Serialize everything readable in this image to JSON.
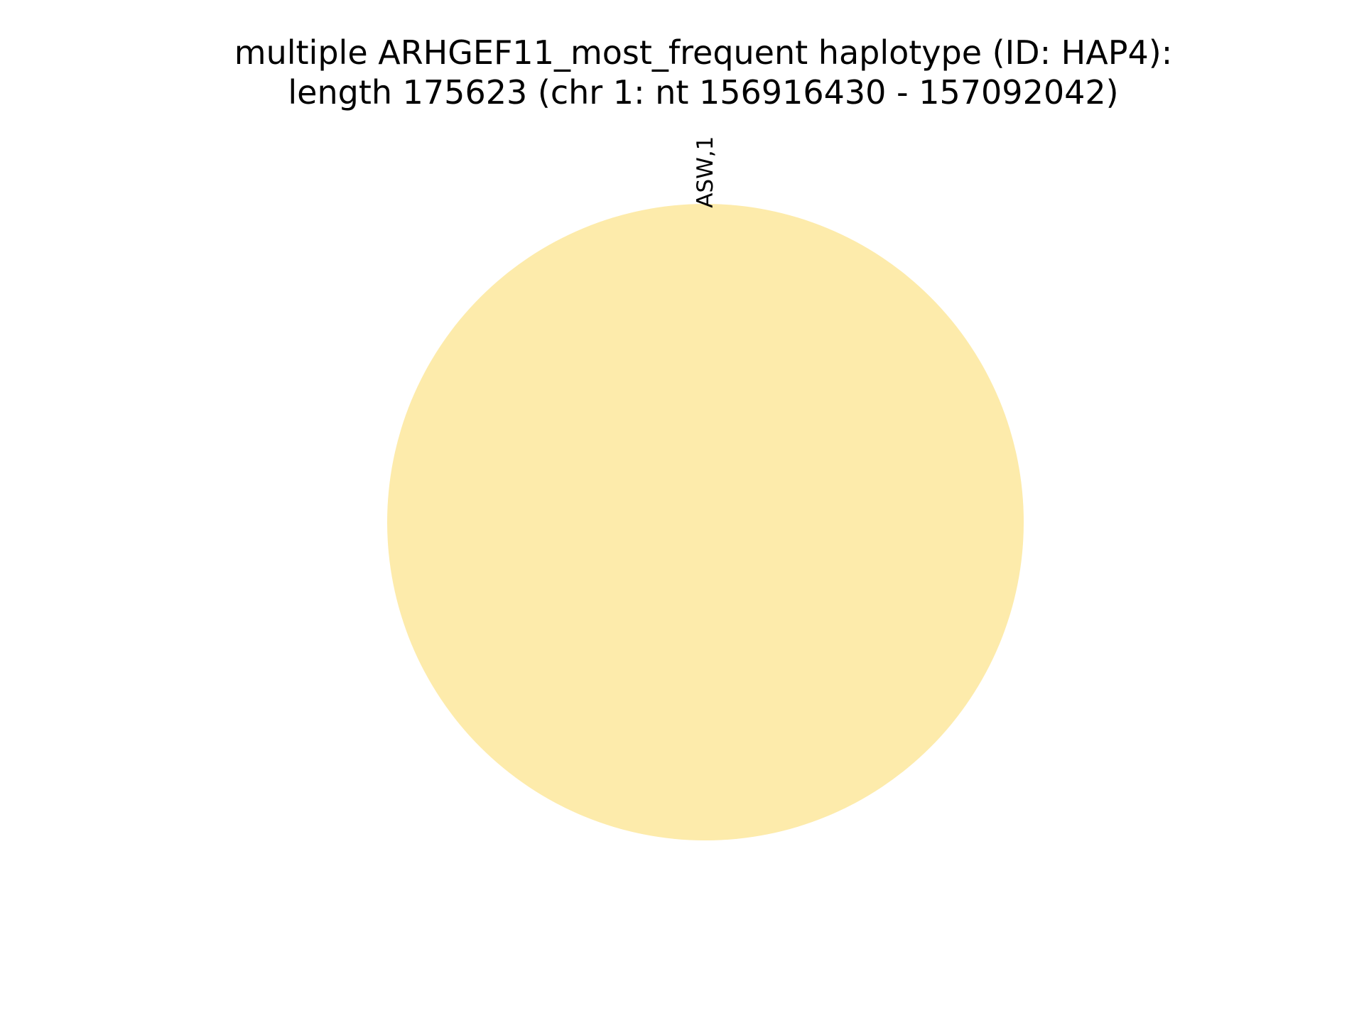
{
  "chart_data": {
    "type": "pie",
    "title": "multiple ARHGEF11_most_frequent haplotype (ID: HAP4):",
    "subtitle": "length 175623 (chr 1: nt 156916430 - 157092042)",
    "slices": [
      {
        "label": "ASW,1",
        "value": 1,
        "color": "#fdebab"
      }
    ],
    "legend": "none"
  }
}
